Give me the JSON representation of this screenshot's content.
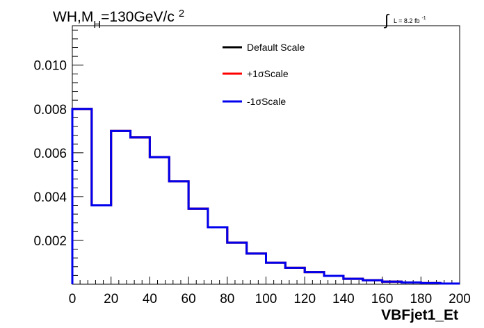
{
  "chart_data": {
    "type": "step",
    "title_parts": {
      "main": "WH,M",
      "sub": "H",
      "rest": "=130GeV/c",
      "sup": "2"
    },
    "lumi_parts": {
      "integral": "∫",
      "text": "L = 8.2 fb",
      "sup": "-1"
    },
    "xlabel": "VBFjet1_Et",
    "ylabel": "",
    "xlim": [
      0,
      200
    ],
    "ylim": [
      0,
      0.0118
    ],
    "x_ticks": [
      "0",
      "20",
      "40",
      "60",
      "80",
      "100",
      "120",
      "140",
      "160",
      "180",
      "200"
    ],
    "x_tick_values": [
      0,
      20,
      40,
      60,
      80,
      100,
      120,
      140,
      160,
      180,
      200
    ],
    "y_ticks": [
      "0.002",
      "0.004",
      "0.006",
      "0.008",
      "0.010"
    ],
    "y_tick_values": [
      0.002,
      0.004,
      0.006,
      0.008,
      0.01
    ],
    "bin_edges": [
      0,
      10,
      20,
      30,
      40,
      50,
      60,
      70,
      80,
      90,
      100,
      110,
      120,
      130,
      140,
      150,
      160,
      170,
      180,
      190,
      200
    ],
    "legend_position": "top-right",
    "series": [
      {
        "name": "Default Scale",
        "color": "#000000",
        "values": [
          0.008,
          0.0036,
          0.007,
          0.0067,
          0.0058,
          0.0047,
          0.00345,
          0.0026,
          0.0019,
          0.0014,
          0.00098,
          0.00075,
          0.00055,
          0.00038,
          0.00025,
          0.00018,
          0.00012,
          8e-05,
          5e-05,
          3e-05
        ]
      },
      {
        "name": "+1σScale",
        "color": "#ff0000",
        "values": [
          0.008,
          0.0036,
          0.007,
          0.0067,
          0.0058,
          0.0047,
          0.00345,
          0.0026,
          0.0019,
          0.0014,
          0.00098,
          0.00075,
          0.00055,
          0.00038,
          0.00025,
          0.00018,
          0.00012,
          8e-05,
          5e-05,
          3e-05
        ]
      },
      {
        "name": "-1σScale",
        "color": "#0000ee",
        "values": [
          0.008,
          0.0036,
          0.007,
          0.0067,
          0.0058,
          0.0047,
          0.00345,
          0.0026,
          0.0019,
          0.0014,
          0.00098,
          0.00075,
          0.00055,
          0.00038,
          0.00025,
          0.00018,
          0.00012,
          8e-05,
          5e-05,
          3e-05
        ]
      }
    ]
  }
}
